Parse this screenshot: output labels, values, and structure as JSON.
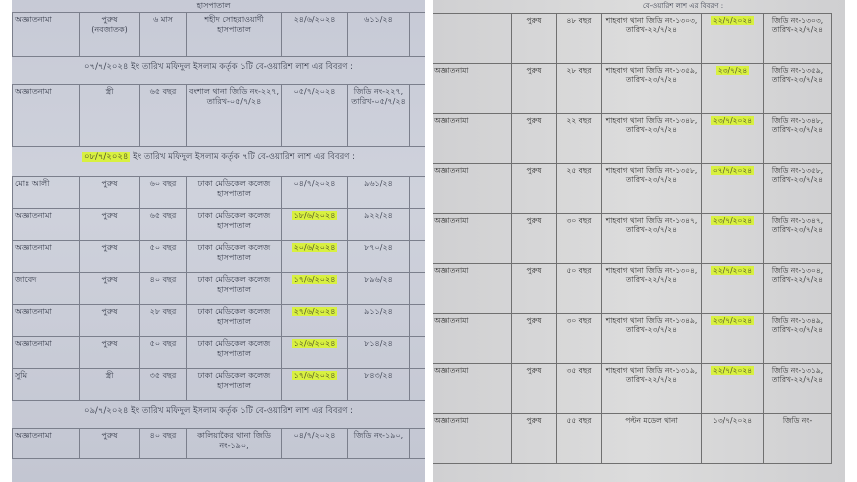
{
  "left": {
    "top_row": {
      "name": "অজ্ঞাতনামা",
      "sex": "পুরুষ (নবজাতক)",
      "age": "৬ মাস",
      "place": "শহীদ সোহরাওয়ার্দী হাসপাতাল",
      "date": "২৪/৬/২০২৪",
      "no": "৬১১/২৪",
      "highlight": false
    },
    "top_place_fragment": "হাসপাতাল",
    "caption_1": "০৭/৭/২০২৪ ইং তারিখ মফিদুল ইসলাম কর্তৃক ১টি বে-ওয়ারিশ লাশ এর বিবরণ :",
    "row_2": {
      "name": "অজ্ঞাতনামা",
      "sex": "স্ত্রী",
      "age": "৬৫ বছর",
      "place": "বংশাল থানা জিডি নং-২২৭, তারিখ-০৫/৭/২৪",
      "date": "০৫/৭/২০২৪",
      "no": "জিডি নং-২২৭, তারিখ-০৫/৭/২৪",
      "highlight": false
    },
    "caption_2_date": "০৮/৭/২০২৪",
    "caption_2": "ইং তারিখ মফিদুল ইসলাম কর্তৃক ৭টি বে-ওয়ারিশ লাশ এর বিবরণ :",
    "rows": [
      {
        "name": "মোঃ আলী",
        "sex": "পুরুষ",
        "age": "৬০ বছর",
        "place": "ঢাকা মেডিকেল কলেজ হাসপাতাল",
        "date": "০৪/৭/২০২৪",
        "no": "৯৬১/২৪",
        "highlight": false
      },
      {
        "name": "অজ্ঞাতনামা",
        "sex": "পুরুষ",
        "age": "৬৫ বছর",
        "place": "ঢাকা মেডিকেল কলেজ হাসপাতাল",
        "date": "১৮/৬/২০২৪",
        "no": "৯২২/২৪",
        "highlight": true
      },
      {
        "name": "অজ্ঞাতনামা",
        "sex": "পুরুষ",
        "age": "৫০ বছর",
        "place": "ঢাকা মেডিকেল কলেজ হাসপাতাল",
        "date": "২০/৬/২০২৪",
        "no": "৮৭০/২৪",
        "highlight": true
      },
      {
        "name": "জাবেদ",
        "sex": "পুরুষ",
        "age": "৪০ বছর",
        "place": "ঢাকা মেডিকেল কলেজ হাসপাতাল",
        "date": "১৭/৬/২০২৪",
        "no": "৮৯৬/২৪",
        "highlight": true
      },
      {
        "name": "অজ্ঞাতনামা",
        "sex": "পুরুষ",
        "age": "২৮ বছর",
        "place": "ঢাকা মেডিকেল কলেজ হাসপাতাল",
        "date": "২৭/৬/২০২৪",
        "no": "৯১১/২৪",
        "highlight": true
      },
      {
        "name": "অজ্ঞাতনামা",
        "sex": "পুরুষ",
        "age": "৫০ বছর",
        "place": "ঢাকা মেডিকেল কলেজ হাসপাতাল",
        "date": "১২/৬/২০২৪",
        "no": "৮১৪/২৪",
        "highlight": true
      },
      {
        "name": "সুমি",
        "sex": "স্ত্রী",
        "age": "৩৫ বছর",
        "place": "ঢাকা মেডিকেল কলেজ হাসপাতাল",
        "date": "১৭/৬/২০২৪",
        "no": "৮৪৩/২৪",
        "highlight": true
      }
    ],
    "caption_3": "০৯/৭/২০২৪ ইং তারিখ মফিদুল ইসলাম কর্তৃক ১টি বে-ওয়ারিশ লাশ এর বিবরণ :",
    "last_row": {
      "name": "অজ্ঞাতনামা",
      "sex": "পুরুষ",
      "age": "৪০ বছর",
      "place": "কালিয়াকৈর থানা জিডি নং-১৯০,",
      "date": "০৪/৭/২০২৪",
      "no": "জিডি নং-১৯০,",
      "highlight": false
    }
  },
  "right": {
    "caption_fragment": "বে-ওয়ারিশ লাশ এর বিবরণ :",
    "rows": [
      {
        "name": "",
        "sex": "পুরুষ",
        "age": "৪৮ বছর",
        "place": "শাহবাগ থানা জিডি নং-১৩০৩, তারিখ-২২/৭/২৪",
        "date": "২২/৭/২০২৪",
        "no": "জিডি নং-১৩০৩, তারিখ-২২/৭/২৪",
        "highlight": true
      },
      {
        "name": "অজ্ঞাতনামা",
        "sex": "পুরুষ",
        "age": "২৮ বছর",
        "place": "শাহবাগ থানা জিডি নং-১৩৫৯, তারিখ-২৩/৭/২৪",
        "date": "২৩/৭/২৪",
        "no": "জিডি নং-১৩৫৯, তারিখ-২৩/৭/২৪",
        "highlight": true
      },
      {
        "name": "অজ্ঞাতনামা",
        "sex": "পুরুষ",
        "age": "২২ বছর",
        "place": "শাহবাগ থানা জিডি নং-১৩৪৮, তারিখ-২৩/৭/২৪",
        "date": "২৩/৭/২০২৪",
        "no": "জিডি নং-১৩৪৮, তারিখ-২৩/৭/২৪",
        "highlight": true
      },
      {
        "name": "অজ্ঞাতনামা",
        "sex": "পুরুষ",
        "age": "২৫ বছর",
        "place": "শাহবাগ থানা জিডি নং-১৩৫৮, তারিখ-২৩/৭/২৪",
        "date": "০৭/৭/২০২৪",
        "no": "জিডি নং-১৩৫৮, তারিখ-২৩/৭/২৪",
        "highlight": true
      },
      {
        "name": "অজ্ঞাতনামা",
        "sex": "পুরুষ",
        "age": "৩০ বছর",
        "place": "শাহবাগ থানা জিডি নং-১৩৪৭, তারিখ-২৩/৭/২৪",
        "date": "২৩/৭/২০২৪",
        "no": "জিডি নং-১৩৪৭, তারিখ-২৩/৭/২৪",
        "highlight": true
      },
      {
        "name": "অজ্ঞাতনামা",
        "sex": "পুরুষ",
        "age": "৫০ বছর",
        "place": "শাহবাগ থানা জিডি নং-১৩০৪, তারিখ-২২/৭/২৪",
        "date": "২২/৭/২০২৪",
        "no": "জিডি নং-১৩০৪, তারিখ-২২/৭/২৪",
        "highlight": true
      },
      {
        "name": "অজ্ঞাতনামা",
        "sex": "পুরুষ",
        "age": "৩০ বছর",
        "place": "শাহবাগ থানা জিডি নং-১৩৪৯, তারিখ-২৩/৭/২৪",
        "date": "২৩/৭/২০২৪",
        "no": "জিডি নং-১৩৪৯, তারিখ-২৩/৭/২৪",
        "highlight": true
      },
      {
        "name": "অজ্ঞাতনামা",
        "sex": "পুরুষ",
        "age": "৩৫ বছর",
        "place": "শাহবাগ থানা জিডি নং-১৩১৯, তারিখ-২২/৭/২৪",
        "date": "২২/৭/২০২৪",
        "no": "জিডি নং-১৩১৯, তারিখ-২২/৭/২৪",
        "highlight": true
      },
      {
        "name": "অজ্ঞাতনামা",
        "sex": "পুরুষ",
        "age": "৫৫ বছর",
        "place": "পল্টন মডেল থানা",
        "date": "১৩/৭/২০২৪",
        "no": "জিডি নং-",
        "highlight": false
      }
    ]
  },
  "colors": {
    "highlight": "#d8f040",
    "paper_left": "#c9ccd7",
    "paper_right": "#d8d8d8"
  }
}
